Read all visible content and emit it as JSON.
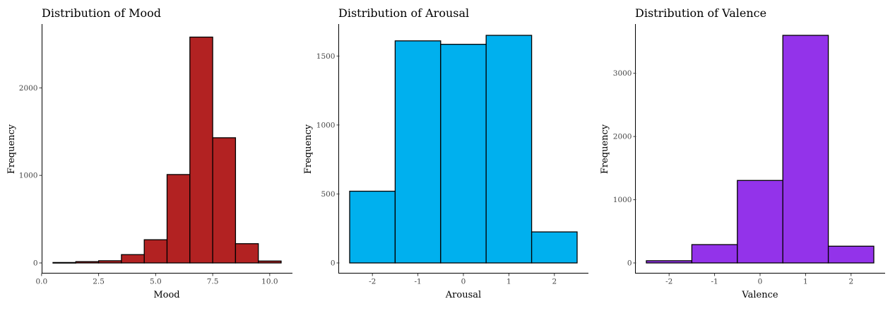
{
  "chart_data": [
    {
      "type": "bar",
      "title": "Distribution of Mood",
      "xlabel": "Mood",
      "ylabel": "Frequency",
      "color": "#B22222",
      "xlim": [
        0.0,
        10.5
      ],
      "ylim": [
        0,
        2600
      ],
      "xticks": [
        0.0,
        2.5,
        5.0,
        7.5,
        10.0
      ],
      "xtick_labels": [
        "0.0",
        "2.5",
        "5.0",
        "7.5",
        "10.0"
      ],
      "yticks": [
        0,
        1000,
        2000
      ],
      "ytick_labels": [
        "0",
        "1000",
        "2000"
      ],
      "bins": [
        {
          "x0": 0.5,
          "x1": 1.5,
          "value": 5
        },
        {
          "x0": 1.5,
          "x1": 2.5,
          "value": 15
        },
        {
          "x0": 2.5,
          "x1": 3.5,
          "value": 25
        },
        {
          "x0": 3.5,
          "x1": 4.5,
          "value": 95
        },
        {
          "x0": 4.5,
          "x1": 5.5,
          "value": 265
        },
        {
          "x0": 5.5,
          "x1": 6.5,
          "value": 1010
        },
        {
          "x0": 6.5,
          "x1": 7.5,
          "value": 2580
        },
        {
          "x0": 7.5,
          "x1": 8.5,
          "value": 1430
        },
        {
          "x0": 8.5,
          "x1": 9.5,
          "value": 220
        },
        {
          "x0": 9.5,
          "x1": 10.5,
          "value": 22
        }
      ]
    },
    {
      "type": "bar",
      "title": "Distribution of Arousal",
      "xlabel": "Arousal",
      "ylabel": "Frequency",
      "color": "#00B0EE",
      "xlim": [
        -2.5,
        2.5
      ],
      "ylim": [
        0,
        1650
      ],
      "xticks": [
        -2,
        -1,
        0,
        1,
        2
      ],
      "xtick_labels": [
        "-2",
        "-1",
        "0",
        "1",
        "2"
      ],
      "yticks": [
        0,
        500,
        1000,
        1500
      ],
      "ytick_labels": [
        "0",
        "500",
        "1000",
        "1500"
      ],
      "bins": [
        {
          "x0": -2.5,
          "x1": -1.5,
          "value": 520
        },
        {
          "x0": -1.5,
          "x1": -0.5,
          "value": 1610
        },
        {
          "x0": -0.5,
          "x1": 0.5,
          "value": 1585
        },
        {
          "x0": 0.5,
          "x1": 1.5,
          "value": 1650
        },
        {
          "x0": 1.5,
          "x1": 2.5,
          "value": 225
        }
      ]
    },
    {
      "type": "bar",
      "title": "Distribution of Valence",
      "xlabel": "Valence",
      "ylabel": "Frequency",
      "color": "#9333EA",
      "xlim": [
        -2.5,
        2.5
      ],
      "ylim": [
        0,
        3600
      ],
      "xticks": [
        -2,
        -1,
        0,
        1,
        2
      ],
      "xtick_labels": [
        "-2",
        "-1",
        "0",
        "1",
        "2"
      ],
      "yticks": [
        0,
        1000,
        2000,
        3000
      ],
      "ytick_labels": [
        "0",
        "1000",
        "2000",
        "3000"
      ],
      "bins": [
        {
          "x0": -2.5,
          "x1": -1.5,
          "value": 35
        },
        {
          "x0": -1.5,
          "x1": -0.5,
          "value": 290
        },
        {
          "x0": -0.5,
          "x1": 0.5,
          "value": 1305
        },
        {
          "x0": 0.5,
          "x1": 1.5,
          "value": 3600
        },
        {
          "x0": 1.5,
          "x1": 2.5,
          "value": 265
        }
      ]
    }
  ]
}
